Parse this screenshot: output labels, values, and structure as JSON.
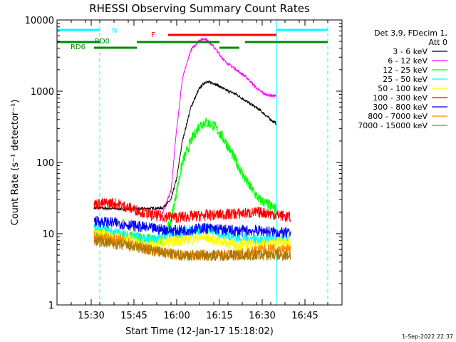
{
  "chart_data": {
    "type": "line",
    "title": "RHESSI Observing Summary Count Rates",
    "xlabel": "Start Time (12-Jan-17 15:18:02)",
    "ylabel": "Count Rate (s⁻¹ detector⁻¹)",
    "y_scale": "log",
    "ylim": [
      1,
      10000
    ],
    "xlim": [
      "15:18",
      "16:58"
    ],
    "x_ticks": [
      "15:30",
      "15:45",
      "16:00",
      "16:15",
      "16:30",
      "16:45"
    ],
    "y_ticks": [
      "1",
      "10",
      "100",
      "1000",
      "10000"
    ],
    "legend": {
      "placement": "right",
      "header": [
        "Det 3,9, FDecim 1,",
        "Att 0"
      ],
      "entries": [
        {
          "label": "3 - 6 keV",
          "color": "#000000"
        },
        {
          "label": "6 - 12 keV",
          "color": "#ff00ff"
        },
        {
          "label": "12 - 25 keV",
          "color": "#00ff00"
        },
        {
          "label": "25 - 50 keV",
          "color": "#00ffff"
        },
        {
          "label": "50 - 100 keV",
          "color": "#ffff00"
        },
        {
          "label": "100 - 300 keV",
          "color": "#ff0000"
        },
        {
          "label": "300 - 800 keV",
          "color": "#0000ff"
        },
        {
          "label": "800 - 7000 keV",
          "color": "#ff8800"
        },
        {
          "label": "7000 - 15000 keV",
          "color": "#aa7700"
        }
      ]
    },
    "series": [
      {
        "name": "3 - 6 keV",
        "color": "#000000",
        "points": [
          [
            "15:31",
            23
          ],
          [
            "15:45",
            22
          ],
          [
            "15:55",
            23
          ],
          [
            "15:58",
            30
          ],
          [
            "16:00",
            60
          ],
          [
            "16:02",
            200
          ],
          [
            "16:05",
            600
          ],
          [
            "16:08",
            1100
          ],
          [
            "16:10",
            1350
          ],
          [
            "16:13",
            1300
          ],
          [
            "16:17",
            1050
          ],
          [
            "16:21",
            900
          ],
          [
            "16:25",
            700
          ],
          [
            "16:29",
            550
          ],
          [
            "16:33",
            400
          ],
          [
            "16:35",
            350
          ]
        ]
      },
      {
        "name": "6 - 12 keV",
        "color": "#ff00ff",
        "points": [
          [
            "15:54",
            15
          ],
          [
            "15:56",
            25
          ],
          [
            "15:58",
            40
          ],
          [
            "16:00",
            300
          ],
          [
            "16:02",
            1500
          ],
          [
            "16:05",
            3800
          ],
          [
            "16:08",
            5200
          ],
          [
            "16:10",
            5500
          ],
          [
            "16:13",
            4200
          ],
          [
            "16:17",
            2600
          ],
          [
            "16:21",
            2000
          ],
          [
            "16:25",
            1500
          ],
          [
            "16:28",
            1100
          ],
          [
            "16:31",
            900
          ],
          [
            "16:35",
            850
          ]
        ]
      },
      {
        "name": "12 - 25 keV",
        "color": "#00ff00",
        "points": [
          [
            "15:31",
            10
          ],
          [
            "15:45",
            9
          ],
          [
            "15:55",
            8
          ],
          [
            "15:58",
            15
          ],
          [
            "16:00",
            40
          ],
          [
            "16:02",
            100
          ],
          [
            "16:05",
            200
          ],
          [
            "16:08",
            330
          ],
          [
            "16:10",
            370
          ],
          [
            "16:13",
            330
          ],
          [
            "16:17",
            200
          ],
          [
            "16:21",
            100
          ],
          [
            "16:25",
            50
          ],
          [
            "16:29",
            30
          ],
          [
            "16:35",
            22
          ]
        ]
      },
      {
        "name": "25 - 50 keV",
        "color": "#00ffff",
        "points": [
          [
            "15:31",
            12
          ],
          [
            "15:40",
            10
          ],
          [
            "15:50",
            8
          ],
          [
            "16:00",
            10
          ],
          [
            "16:10",
            12
          ],
          [
            "16:20",
            9
          ],
          [
            "16:30",
            8
          ],
          [
            "16:40",
            9
          ]
        ]
      },
      {
        "name": "50 - 100 keV",
        "color": "#ffff00",
        "points": [
          [
            "15:31",
            10
          ],
          [
            "15:40",
            9
          ],
          [
            "15:50",
            7
          ],
          [
            "16:00",
            8
          ],
          [
            "16:10",
            9
          ],
          [
            "16:20",
            7
          ],
          [
            "16:30",
            7
          ],
          [
            "16:40",
            8
          ]
        ]
      },
      {
        "name": "100 - 300 keV",
        "color": "#ff0000",
        "points": [
          [
            "15:31",
            26
          ],
          [
            "15:38",
            27
          ],
          [
            "15:45",
            22
          ],
          [
            "15:52",
            18
          ],
          [
            "16:00",
            17
          ],
          [
            "16:10",
            18
          ],
          [
            "16:20",
            19
          ],
          [
            "16:30",
            20
          ],
          [
            "16:40",
            17
          ]
        ]
      },
      {
        "name": "300 - 800 keV",
        "color": "#0000ff",
        "points": [
          [
            "15:31",
            15
          ],
          [
            "15:40",
            14
          ],
          [
            "15:50",
            12
          ],
          [
            "16:00",
            11
          ],
          [
            "16:10",
            12
          ],
          [
            "16:20",
            11
          ],
          [
            "16:30",
            11
          ],
          [
            "16:40",
            10
          ]
        ]
      },
      {
        "name": "800 - 7000 keV",
        "color": "#ff8800",
        "points": [
          [
            "15:31",
            9
          ],
          [
            "15:40",
            8
          ],
          [
            "15:50",
            6
          ],
          [
            "16:00",
            5
          ],
          [
            "16:10",
            5
          ],
          [
            "16:20",
            5
          ],
          [
            "16:30",
            6
          ],
          [
            "16:40",
            6
          ]
        ]
      },
      {
        "name": "7000 - 15000 keV",
        "color": "#aa7700",
        "points": [
          [
            "15:31",
            8
          ],
          [
            "15:40",
            7
          ],
          [
            "15:50",
            6
          ],
          [
            "16:00",
            5
          ],
          [
            "16:10",
            5
          ],
          [
            "16:20",
            5
          ],
          [
            "16:30",
            5
          ],
          [
            "16:40",
            5
          ]
        ]
      }
    ],
    "bars": [
      {
        "label": "N",
        "color": "#00ffff",
        "segments": [
          [
            "15:18",
            "15:33"
          ],
          [
            "16:35",
            "16:53"
          ]
        ]
      },
      {
        "label": "F",
        "color": "#ff0000",
        "segments": [
          [
            "15:57",
            "16:35"
          ]
        ]
      },
      {
        "label": "RD0",
        "color": "#008800",
        "segments": [
          [
            "15:18",
            "15:33"
          ],
          [
            "15:46",
            "16:15"
          ],
          [
            "16:24",
            "16:53"
          ]
        ]
      },
      {
        "label": "RD6",
        "color": "#008800",
        "segments": [
          [
            "15:31",
            "15:46"
          ],
          [
            "16:15",
            "16:22"
          ]
        ]
      }
    ],
    "vertical_markers": [
      {
        "time": "15:18",
        "color": "#00ffff",
        "style": "solid"
      },
      {
        "time": "15:33",
        "color": "#00ffff",
        "style": "dashed"
      },
      {
        "time": "16:35",
        "color": "#00ffff",
        "style": "solid"
      },
      {
        "time": "16:53",
        "color": "#00ffff",
        "style": "dashed"
      }
    ],
    "grid": false
  },
  "footer": "1-Sep-2022 22:37"
}
